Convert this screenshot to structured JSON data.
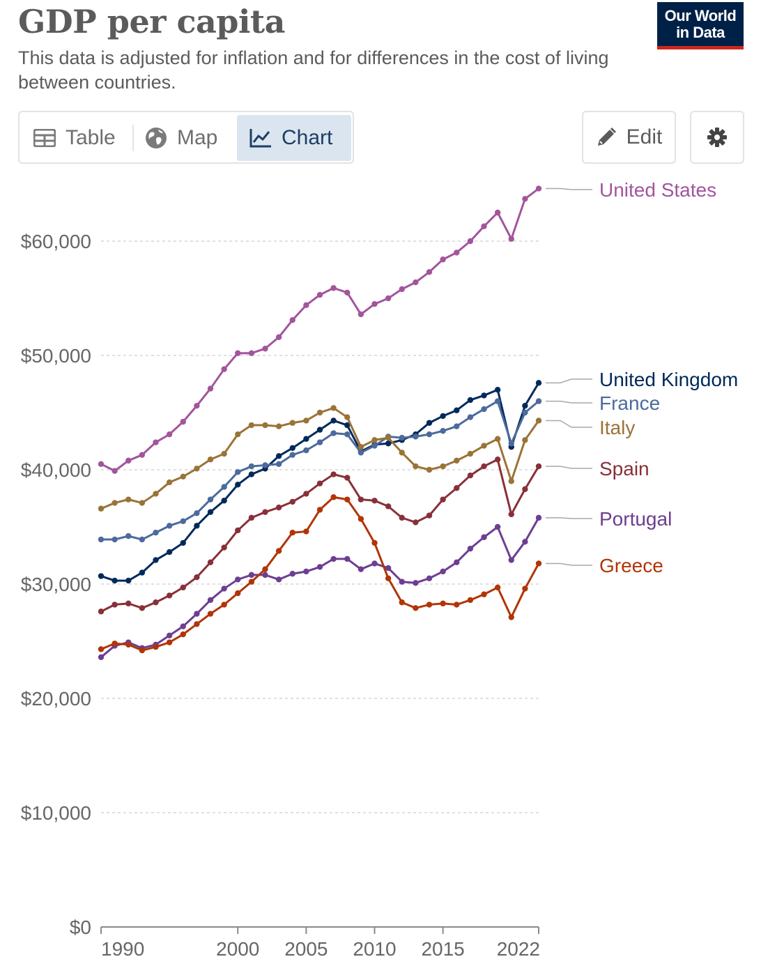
{
  "header": {
    "title": "GDP per capita",
    "subtitle": "This data is adjusted for inflation and for differences in the cost of living between countries.",
    "logo_line1": "Our World",
    "logo_line2": "in Data"
  },
  "tabs": [
    {
      "label": "Table",
      "icon": "table-icon",
      "active": false
    },
    {
      "label": "Map",
      "icon": "globe-icon",
      "active": false
    },
    {
      "label": "Chart",
      "icon": "line-chart-icon",
      "active": true
    }
  ],
  "toolbar": {
    "edit_label": "Edit",
    "edit_icon": "pencil-icon",
    "settings_icon": "gear-icon"
  },
  "colors": {
    "United States": "#a2559c",
    "United Kingdom": "#00295b",
    "France": "#4c6a9c",
    "Italy": "#9a7337",
    "Spain": "#883039",
    "Portugal": "#6d3e91",
    "Greece": "#b13507",
    "logo_bg": "#002147",
    "logo_accent": "#ce261e",
    "active_tab_bg": "#dbe5f0"
  },
  "chart_data": {
    "type": "line",
    "title": "GDP per capita",
    "xlabel": "",
    "ylabel": "",
    "xlim": [
      1990,
      2022
    ],
    "ylim": [
      0,
      60000
    ],
    "yticks": [
      0,
      10000,
      20000,
      30000,
      40000,
      50000,
      60000
    ],
    "ytick_labels": [
      "$0",
      "$10,000",
      "$20,000",
      "$30,000",
      "$40,000",
      "$50,000",
      "$60,000"
    ],
    "xticks": [
      1990,
      2000,
      2005,
      2010,
      2015,
      2022
    ],
    "xtick_labels": [
      "1990",
      "2000",
      "2005",
      "2010",
      "2015",
      "2022"
    ],
    "grid": "horizontal dashed",
    "legend": "right (inline end labels)",
    "x": [
      1990,
      1991,
      1992,
      1993,
      1994,
      1995,
      1996,
      1997,
      1998,
      1999,
      2000,
      2001,
      2002,
      2003,
      2004,
      2005,
      2006,
      2007,
      2008,
      2009,
      2010,
      2011,
      2012,
      2013,
      2014,
      2015,
      2016,
      2017,
      2018,
      2019,
      2020,
      2021,
      2022
    ],
    "series": [
      {
        "name": "United States",
        "values": [
          40500,
          39900,
          40800,
          41300,
          42400,
          43100,
          44200,
          45600,
          47100,
          48800,
          50200,
          50200,
          50600,
          51600,
          53100,
          54400,
          55300,
          55900,
          55500,
          53600,
          54500,
          55000,
          55800,
          56400,
          57300,
          58400,
          59000,
          60000,
          61300,
          62500,
          60200,
          63700,
          64600
        ]
      },
      {
        "name": "United Kingdom",
        "values": [
          30700,
          30300,
          30300,
          31000,
          32100,
          32800,
          33600,
          35100,
          36300,
          37300,
          38700,
          39600,
          40100,
          41200,
          41900,
          42700,
          43500,
          44300,
          43900,
          41600,
          42200,
          42300,
          42600,
          43100,
          44100,
          44700,
          45200,
          46100,
          46500,
          47000,
          42000,
          45600,
          47600
        ]
      },
      {
        "name": "France",
        "values": [
          33900,
          33900,
          34200,
          33900,
          34500,
          35100,
          35500,
          36200,
          37400,
          38500,
          39800,
          40300,
          40400,
          40500,
          41300,
          41700,
          42400,
          43200,
          43100,
          41500,
          42100,
          42900,
          42800,
          42900,
          43100,
          43400,
          43800,
          44600,
          45300,
          46000,
          42300,
          45000,
          46000
        ]
      },
      {
        "name": "Italy",
        "values": [
          36600,
          37100,
          37400,
          37100,
          37900,
          38900,
          39400,
          40100,
          40900,
          41400,
          43100,
          43900,
          43900,
          43800,
          44100,
          44300,
          45000,
          45400,
          44600,
          42000,
          42600,
          42800,
          41500,
          40300,
          40000,
          40300,
          40800,
          41400,
          42100,
          42700,
          39000,
          42600,
          44300
        ]
      },
      {
        "name": "Spain",
        "values": [
          27600,
          28200,
          28300,
          27900,
          28400,
          29000,
          29700,
          30600,
          31900,
          33200,
          34700,
          35800,
          36300,
          36700,
          37200,
          37900,
          38800,
          39600,
          39300,
          37400,
          37300,
          36800,
          35800,
          35400,
          36000,
          37400,
          38400,
          39500,
          40300,
          40900,
          36100,
          38300,
          40300
        ]
      },
      {
        "name": "Portugal",
        "values": [
          23600,
          24600,
          24900,
          24400,
          24700,
          25500,
          26300,
          27400,
          28600,
          29600,
          30400,
          30800,
          30800,
          30400,
          30900,
          31100,
          31500,
          32200,
          32200,
          31300,
          31800,
          31400,
          30200,
          30100,
          30500,
          31100,
          31900,
          33100,
          34100,
          35000,
          32100,
          33700,
          35800
        ]
      },
      {
        "name": "Greece",
        "values": [
          24300,
          24800,
          24700,
          24200,
          24500,
          24900,
          25600,
          26500,
          27400,
          28200,
          29200,
          30200,
          31300,
          32900,
          34500,
          34600,
          36500,
          37600,
          37400,
          35700,
          33600,
          30500,
          28400,
          27900,
          28200,
          28300,
          28200,
          28600,
          29100,
          29700,
          27100,
          29600,
          31800
        ]
      }
    ]
  }
}
